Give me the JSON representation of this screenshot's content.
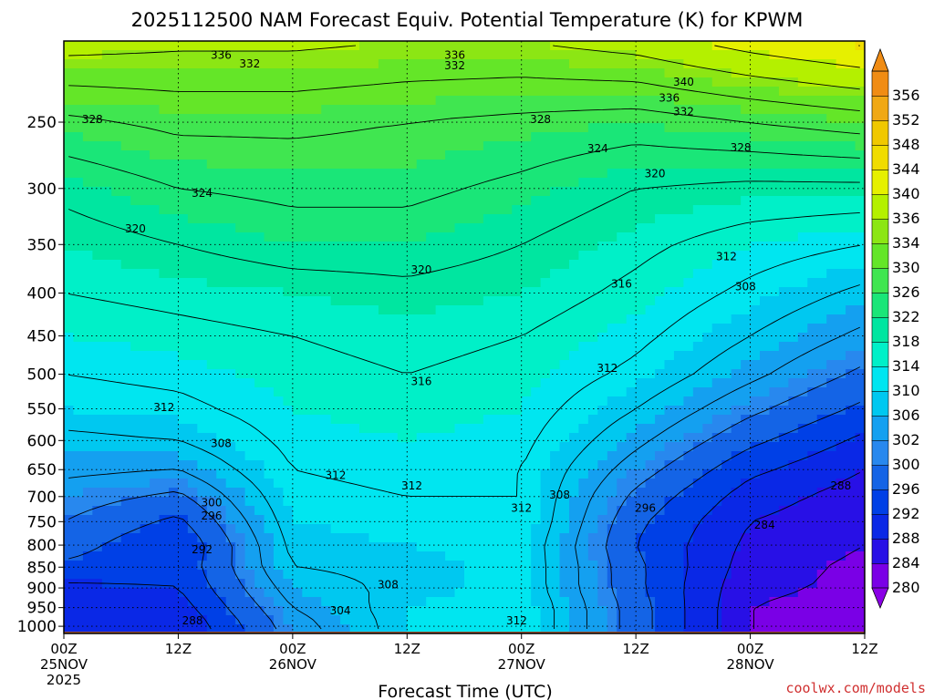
{
  "title": "2025112500 NAM Forecast Equiv. Potential Temperature (K) for KPWM",
  "xlabel": "Forecast Time (UTC)",
  "credit": "coolwx.com/models",
  "chart_data": {
    "type": "heatmap",
    "title": "2025112500 NAM Forecast Equiv. Potential Temperature (K) for KPWM",
    "xlabel": "Forecast Time (UTC)",
    "ylabel": "",
    "x_ticks": [
      {
        "line1": "00Z",
        "line2": "25NOV",
        "line3": "2025"
      },
      {
        "line1": "12Z",
        "line2": "",
        "line3": ""
      },
      {
        "line1": "00Z",
        "line2": "26NOV",
        "line3": ""
      },
      {
        "line1": "12Z",
        "line2": "",
        "line3": ""
      },
      {
        "line1": "00Z",
        "line2": "27NOV",
        "line3": ""
      },
      {
        "line1": "12Z",
        "line2": "",
        "line3": ""
      },
      {
        "line1": "00Z",
        "line2": "28NOV",
        "line3": ""
      },
      {
        "line1": "12Z",
        "line2": "",
        "line3": ""
      }
    ],
    "x_hours": [
      0,
      12,
      24,
      36,
      48,
      60,
      72,
      84
    ],
    "xlim": [
      0,
      84
    ],
    "y_scale": "log",
    "y_ticks": [
      250,
      300,
      350,
      400,
      450,
      500,
      550,
      600,
      650,
      700,
      750,
      800,
      850,
      900,
      950,
      1000
    ],
    "ylim": [
      1020,
      200
    ],
    "grid": true,
    "colorbar_levels": [
      280,
      284,
      288,
      292,
      296,
      300,
      302,
      306,
      310,
      314,
      318,
      322,
      326,
      330,
      334,
      336,
      340,
      344,
      348,
      352,
      356
    ],
    "colorbar_colors": [
      "#7a00e6",
      "#2810e6",
      "#0a28e6",
      "#0040e6",
      "#1464e6",
      "#2888ee",
      "#14a0f0",
      "#00c8f0",
      "#00e6f0",
      "#00f0c8",
      "#00e6a0",
      "#1ae678",
      "#40e650",
      "#64e628",
      "#8ce614",
      "#b4f000",
      "#e6f000",
      "#f0dc00",
      "#f0c800",
      "#f0a814",
      "#f08c14"
    ],
    "series": [
      {
        "hour": 0,
        "pressures": [
          1000,
          950,
          900,
          850,
          800,
          750,
          700,
          650,
          600,
          550,
          500,
          450,
          400,
          350,
          300,
          250,
          200
        ],
        "theta_e": [
          288,
          289,
          291,
          295,
          298,
          300,
          302,
          305,
          307,
          310,
          312,
          314,
          316,
          318,
          321,
          327,
          338
        ]
      },
      {
        "hour": 12,
        "pressures": [
          1000,
          950,
          900,
          850,
          800,
          750,
          700,
          650,
          600,
          550,
          500,
          450,
          400,
          350,
          300,
          250,
          200
        ],
        "theta_e": [
          288,
          290,
          292,
          293,
          292,
          295,
          299,
          304,
          308,
          311,
          313,
          315,
          317,
          320,
          324,
          329,
          337
        ]
      },
      {
        "hour": 24,
        "pressures": [
          1000,
          950,
          900,
          850,
          800,
          750,
          700,
          650,
          600,
          550,
          500,
          450,
          400,
          350,
          300,
          250,
          200
        ],
        "theta_e": [
          302,
          304,
          306,
          308,
          309,
          310,
          311,
          312,
          313,
          314,
          315,
          316,
          318,
          322,
          325,
          329,
          337
        ]
      },
      {
        "hour": 36,
        "pressures": [
          1000,
          950,
          900,
          850,
          800,
          750,
          700,
          650,
          600,
          550,
          500,
          450,
          400,
          350,
          300,
          250,
          200
        ],
        "theta_e": [
          310,
          310,
          309,
          309,
          310,
          311,
          312,
          313,
          314,
          315,
          316,
          317,
          319,
          322,
          325,
          328,
          336
        ]
      },
      {
        "hour": 48,
        "pressures": [
          1000,
          950,
          900,
          850,
          800,
          750,
          700,
          650,
          600,
          550,
          500,
          450,
          400,
          350,
          300,
          250,
          200
        ],
        "theta_e": [
          312,
          312,
          311,
          311,
          311,
          312,
          312,
          312,
          313,
          314,
          315,
          316,
          318,
          320,
          323,
          327,
          336
        ]
      },
      {
        "hour": 60,
        "pressures": [
          1000,
          950,
          900,
          850,
          800,
          750,
          700,
          650,
          600,
          550,
          500,
          450,
          400,
          350,
          300,
          250,
          200
        ],
        "theta_e": [
          298,
          298,
          297,
          297,
          296,
          297,
          299,
          302,
          305,
          308,
          311,
          313,
          315,
          317,
          320,
          326,
          338
        ]
      },
      {
        "hour": 72,
        "pressures": [
          1000,
          950,
          900,
          850,
          800,
          750,
          700,
          650,
          600,
          550,
          500,
          450,
          400,
          350,
          300,
          250,
          200
        ],
        "theta_e": [
          284,
          284,
          285,
          286,
          287,
          288,
          290,
          293,
          297,
          301,
          305,
          308,
          311,
          314,
          319,
          328,
          342
        ]
      },
      {
        "hour": 84,
        "pressures": [
          1000,
          950,
          900,
          850,
          800,
          750,
          700,
          650,
          600,
          550,
          500,
          450,
          400,
          350,
          300,
          250,
          200
        ],
        "theta_e": [
          282,
          282,
          283,
          283,
          284,
          285,
          286,
          288,
          291,
          295,
          299,
          303,
          307,
          312,
          319,
          330,
          345
        ]
      }
    ],
    "contour_labels": [
      {
        "text": "336",
        "hour": 16.5,
        "p": 208
      },
      {
        "text": "332",
        "hour": 19.5,
        "p": 213
      },
      {
        "text": "328",
        "hour": 3,
        "p": 248
      },
      {
        "text": "324",
        "hour": 14.5,
        "p": 304
      },
      {
        "text": "320",
        "hour": 7.5,
        "p": 335
      },
      {
        "text": "312",
        "hour": 10.5,
        "p": 548
      },
      {
        "text": "308",
        "hour": 16.5,
        "p": 605
      },
      {
        "text": "300",
        "hour": 15.5,
        "p": 712
      },
      {
        "text": "296",
        "hour": 15.5,
        "p": 738
      },
      {
        "text": "292",
        "hour": 14.5,
        "p": 810
      },
      {
        "text": "288",
        "hour": 13.5,
        "p": 985
      },
      {
        "text": "304",
        "hour": 29,
        "p": 958
      },
      {
        "text": "312",
        "hour": 28.5,
        "p": 660
      },
      {
        "text": "316",
        "hour": 37.5,
        "p": 510
      },
      {
        "text": "320",
        "hour": 37.5,
        "p": 375
      },
      {
        "text": "312",
        "hour": 36.5,
        "p": 680
      },
      {
        "text": "308",
        "hour": 34,
        "p": 892
      },
      {
        "text": "336",
        "hour": 41,
        "p": 208
      },
      {
        "text": "332",
        "hour": 41,
        "p": 214
      },
      {
        "text": "328",
        "hour": 50,
        "p": 248
      },
      {
        "text": "324",
        "hour": 56,
        "p": 269
      },
      {
        "text": "312",
        "hour": 48,
        "p": 723
      },
      {
        "text": "308",
        "hour": 52,
        "p": 697
      },
      {
        "text": "312",
        "hour": 47.5,
        "p": 985
      },
      {
        "text": "316",
        "hour": 58.5,
        "p": 390
      },
      {
        "text": "312",
        "hour": 57,
        "p": 492
      },
      {
        "text": "296",
        "hour": 61,
        "p": 723
      },
      {
        "text": "320",
        "hour": 62,
        "p": 288
      },
      {
        "text": "340",
        "hour": 65,
        "p": 224
      },
      {
        "text": "336",
        "hour": 63.5,
        "p": 234
      },
      {
        "text": "332",
        "hour": 65,
        "p": 243
      },
      {
        "text": "328",
        "hour": 71,
        "p": 268
      },
      {
        "text": "312",
        "hour": 69.5,
        "p": 362
      },
      {
        "text": "308",
        "hour": 71.5,
        "p": 393
      },
      {
        "text": "288",
        "hour": 81.5,
        "p": 680
      },
      {
        "text": "284",
        "hour": 73.5,
        "p": 757
      }
    ],
    "surface_p": 1015
  }
}
